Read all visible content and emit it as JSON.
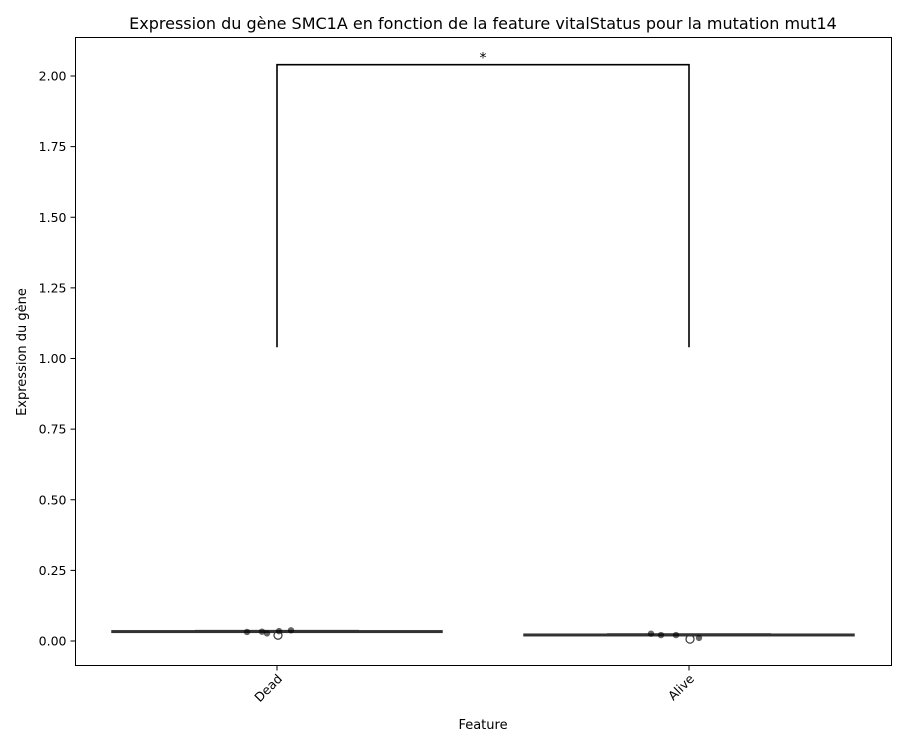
{
  "chart_data": {
    "type": "box",
    "title": "Expression du gène SMC1A en fonction de la feature vitalStatus pour la mutation mut14",
    "xlabel": "Feature",
    "ylabel": "Expression du gène",
    "categories": [
      "Dead",
      "Alive"
    ],
    "ylim": [
      -0.087,
      2.14
    ],
    "yticks": [
      0.0,
      0.25,
      0.5,
      0.75,
      1.0,
      1.25,
      1.5,
      1.75,
      2.0
    ],
    "ytick_labels": [
      "0.00",
      "0.25",
      "0.50",
      "0.75",
      "1.00",
      "1.25",
      "1.50",
      "1.75",
      "2.00"
    ],
    "grid": false,
    "groups": [
      {
        "name": "Dead",
        "box": {
          "q1": 0.033,
          "median": 0.034,
          "q3": 0.036,
          "whisker_low": 0.033,
          "whisker_high": 0.036
        },
        "outliers": [
          0.024
        ],
        "points": [
          0.032,
          0.033,
          0.027,
          0.035,
          0.038
        ]
      },
      {
        "name": "Alive",
        "box": {
          "q1": 0.021,
          "median": 0.022,
          "q3": 0.024,
          "whisker_low": 0.021,
          "whisker_high": 0.024
        },
        "outliers": [
          0.01
        ],
        "points": [
          0.026,
          0.021,
          0.021,
          0.011
        ]
      }
    ],
    "significance": {
      "from": "Dead",
      "to": "Alive",
      "y_bottom": 1.04,
      "y_top": 2.04,
      "label": "*"
    },
    "colors": {
      "box_line": "#333333",
      "point": "#000000",
      "bracket": "#000000"
    }
  }
}
